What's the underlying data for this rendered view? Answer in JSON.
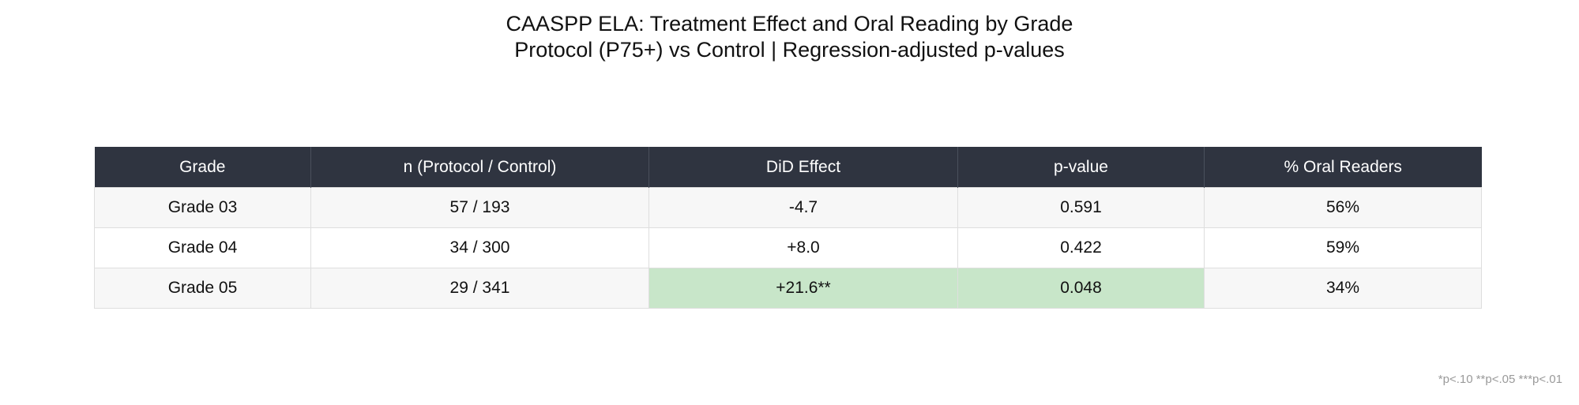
{
  "chart_data": {
    "type": "table",
    "title": "CAASPP ELA: Treatment Effect and Oral Reading by Grade",
    "subtitle": "Protocol (P75+) vs Control | Regression-adjusted p-values",
    "columns": [
      "Grade",
      "n (Protocol / Control)",
      "DiD Effect",
      "p-value",
      "% Oral Readers"
    ],
    "rows": [
      {
        "grade": "Grade 03",
        "n": "57 / 193",
        "did_effect": "-4.7",
        "p_value": "0.591",
        "oral_readers": "56%",
        "significant": false
      },
      {
        "grade": "Grade 04",
        "n": "34 / 300",
        "did_effect": "+8.0",
        "p_value": "0.422",
        "oral_readers": "59%",
        "significant": false
      },
      {
        "grade": "Grade 05",
        "n": "29 / 341",
        "did_effect": "+21.6**",
        "p_value": "0.048",
        "oral_readers": "34%",
        "significant": true
      }
    ],
    "footnote": "*p<.10  **p<.05  ***p<.01"
  },
  "colors": {
    "header_bg": "#2f3440",
    "header_text": "#ffffff",
    "significant_highlight": "#c8e6c9",
    "row_stripe": "#f7f7f7",
    "footnote_text": "#9a9a9a"
  }
}
